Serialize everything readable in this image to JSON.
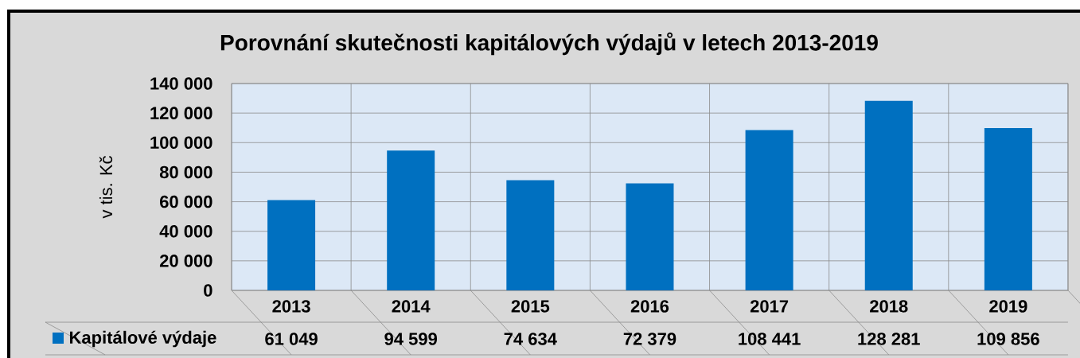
{
  "chart_data": {
    "type": "bar",
    "title": "Porovnání  skutečnosti kapitálových  výdajů v letech 2013-2019",
    "ylabel": "v tis. Kč",
    "categories": [
      "2013",
      "2014",
      "2015",
      "2016",
      "2017",
      "2018",
      "2019"
    ],
    "series": [
      {
        "name": "Kapitálové výdaje",
        "color": "#0070c0",
        "values": [
          61049,
          94599,
          74634,
          72379,
          108441,
          128281,
          109856
        ],
        "value_labels": [
          "61 049",
          "94 599",
          "74 634",
          "72 379",
          "108 441",
          "128 281",
          "109 856"
        ]
      }
    ],
    "ylim": [
      0,
      140000
    ],
    "yticks": [
      0,
      {
        "value": 20000,
        "label": "20 000"
      },
      {
        "value": 40000,
        "label": "40 000"
      },
      {
        "value": 60000,
        "label": "60 000"
      },
      {
        "value": 80000,
        "label": "80 000"
      },
      {
        "value": 100000,
        "label": "100 000"
      },
      {
        "value": 120000,
        "label": "120 000"
      },
      {
        "value": 140000,
        "label": "140 000"
      }
    ],
    "grid": true,
    "legend": "bottom"
  }
}
